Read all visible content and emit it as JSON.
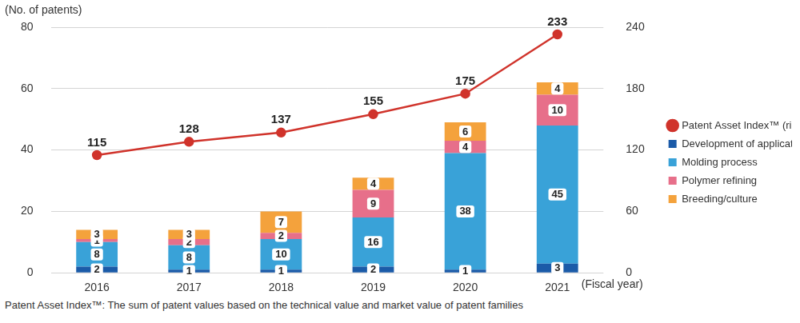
{
  "chart_data": {
    "type": "bar",
    "y_label": "(No. of patents)",
    "x_label": "(Fiscal year)",
    "footnote": "Patent Asset Index™: The sum of patent values based on the technical value and market value of patent families",
    "categories": [
      "2016",
      "2017",
      "2018",
      "2019",
      "2020",
      "2021"
    ],
    "series": [
      {
        "name": "Development of applications",
        "type": "bar",
        "color": "#1b5ba8",
        "values": [
          2,
          1,
          1,
          2,
          1,
          3
        ]
      },
      {
        "name": "Molding process",
        "type": "bar",
        "color": "#39a2d8",
        "values": [
          8,
          8,
          10,
          16,
          38,
          45
        ]
      },
      {
        "name": "Polymer refining",
        "type": "bar",
        "color": "#e76f8a",
        "values": [
          1,
          2,
          2,
          9,
          4,
          10
        ]
      },
      {
        "name": "Breeding/culture",
        "type": "bar",
        "color": "#f4a23c",
        "values": [
          3,
          3,
          7,
          4,
          6,
          4
        ]
      },
      {
        "name": "Patent Asset Index™ (right scale)",
        "type": "line",
        "axis": "y2",
        "color": "#d0332b",
        "marker": "circle",
        "values": [
          115,
          128,
          137,
          155,
          175,
          233
        ]
      }
    ],
    "ylim": [
      0,
      80
    ],
    "yticks": [
      0,
      20,
      40,
      60,
      80
    ],
    "y2lim": [
      0,
      240
    ],
    "y2ticks": [
      0,
      60,
      120,
      180,
      240
    ],
    "stacked": true,
    "data_labels": true,
    "grid": true,
    "legend": "right"
  }
}
